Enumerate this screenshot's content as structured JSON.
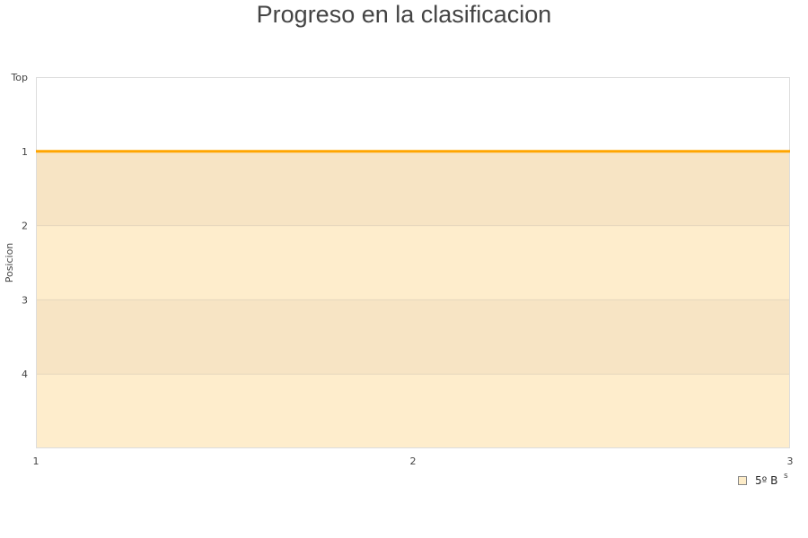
{
  "chart_data": {
    "type": "line",
    "title": "Progreso en la clasificacion",
    "xlabel": "",
    "ylabel": "Posicion",
    "x_ticks": [
      "1",
      "2",
      "3"
    ],
    "y_ticks": [
      "Top",
      "1",
      "2",
      "3",
      "4"
    ],
    "xlim": [
      1,
      3
    ],
    "ylim": [
      5,
      0
    ],
    "y_inverted": true,
    "grid": true,
    "legend_position": "bottom-right",
    "series": [
      {
        "name": "5º B",
        "x": [
          1,
          2,
          3
        ],
        "y": [
          1,
          1,
          1
        ],
        "color": "#ffa500"
      }
    ],
    "bands": [
      {
        "from": 1,
        "to": 2,
        "color": "#f7e4c4"
      },
      {
        "from": 2,
        "to": 3,
        "color": "#feedcc"
      },
      {
        "from": 3,
        "to": 4,
        "color": "#f7e4c4"
      },
      {
        "from": 4,
        "to": 5,
        "color": "#feedcc"
      }
    ],
    "legend_extra_text": "s"
  }
}
